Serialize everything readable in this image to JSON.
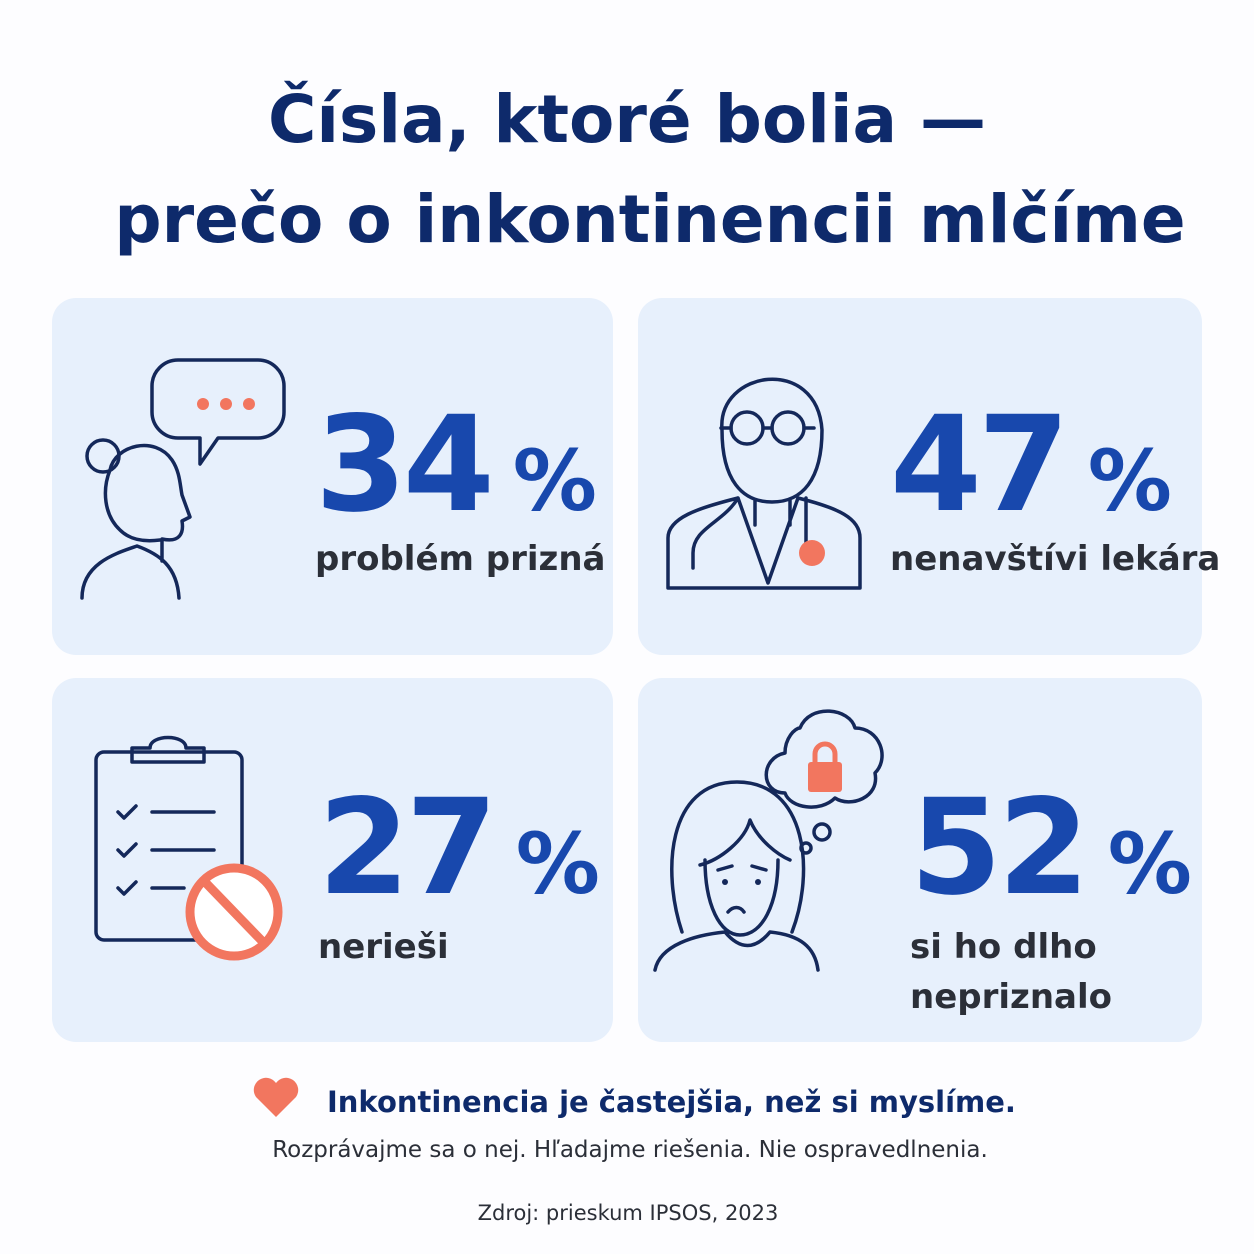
{
  "title": {
    "line1": "Čísla, ktoré bolia —",
    "line2": "prečo o inkontinencii mlčíme"
  },
  "cards": [
    {
      "value": "34",
      "unit": "%",
      "label": [
        "problém prizná"
      ]
    },
    {
      "value": "47",
      "unit": "%",
      "label": [
        "nenavštívi lekára"
      ]
    },
    {
      "value": "27",
      "unit": "%",
      "label": [
        "nerieši"
      ]
    },
    {
      "value": "52",
      "unit": "%",
      "label": [
        "si ho dlho",
        "nepriznalo"
      ]
    }
  ],
  "footer": {
    "headline": "Inkontinencia je častejšia, než si myslíme.",
    "subline": "Rozprávajme sa o nej. Hľadajme riešenia. Nie ospravedlnenia.",
    "source": "Zdroj: prieskum IPSOS, 2023"
  }
}
